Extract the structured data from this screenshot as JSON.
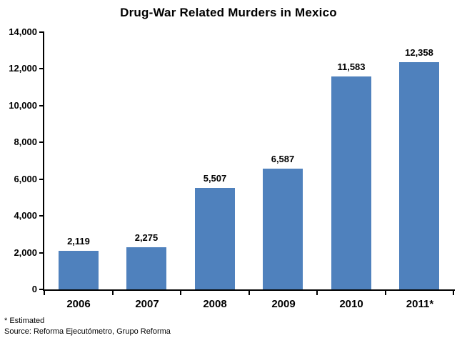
{
  "title": "Drug-War Related Murders in Mexico",
  "footnotes": {
    "estimated": "* Estimated",
    "source": "Source: Reforma Ejecutómetro, Grupo Reforma"
  },
  "colors": {
    "bar": "#4F81BD",
    "axis": "#000000",
    "text": "#000000",
    "background": "#FFFFFF"
  },
  "chart_data": {
    "type": "bar",
    "title": "Drug-War Related Murders in Mexico",
    "categories": [
      "2006",
      "2007",
      "2008",
      "2009",
      "2010",
      "2011*"
    ],
    "values": [
      2119,
      2275,
      5507,
      6587,
      11583,
      12358
    ],
    "value_labels": [
      "2,119",
      "2,275",
      "5,507",
      "6,587",
      "11,583",
      "12,358"
    ],
    "xlabel": "",
    "ylabel": "",
    "ylim": [
      0,
      14000
    ],
    "ytick_interval": 2000,
    "ytick_labels": [
      "0",
      "2,000",
      "4,000",
      "6,000",
      "8,000",
      "10,000",
      "12,000",
      "14,000"
    ],
    "grid": false,
    "legend": false,
    "bar_color": "#4F81BD"
  }
}
